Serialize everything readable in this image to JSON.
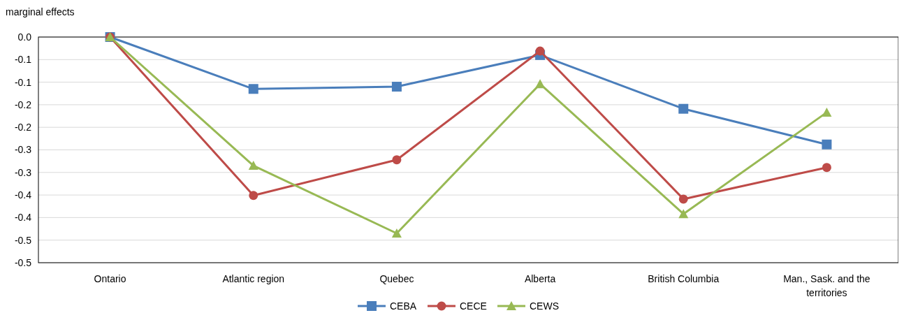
{
  "chart_data": {
    "type": "line",
    "ylabel": "marginal effects",
    "categories": [
      "Ontario",
      "Atlantic region",
      "Quebec",
      "Alberta",
      "British Columbia",
      "Man., Sask. and the territories"
    ],
    "series": [
      {
        "name": "CEBA",
        "color": "#4a7ebb",
        "marker": "square",
        "values": [
          0,
          -0.115,
          -0.11,
          -0.04,
          -0.159,
          -0.238
        ]
      },
      {
        "name": "CECE",
        "color": "#be4b48",
        "marker": "circle",
        "values": [
          0,
          -0.351,
          -0.272,
          -0.031,
          -0.359,
          -0.289
        ]
      },
      {
        "name": "CEWS",
        "color": "#98b954",
        "marker": "triangle",
        "values": [
          0,
          -0.285,
          -0.435,
          -0.104,
          -0.392,
          -0.167
        ]
      }
    ],
    "ylim": [
      -0.5,
      0
    ],
    "yticks": [
      {
        "value": 0,
        "label": "0.0"
      },
      {
        "value": -0.05,
        "label": "-0.1"
      },
      {
        "value": -0.1,
        "label": "-0.1"
      },
      {
        "value": -0.15,
        "label": "-0.2"
      },
      {
        "value": -0.2,
        "label": "-0.2"
      },
      {
        "value": -0.25,
        "label": "-0.3"
      },
      {
        "value": -0.3,
        "label": "-0.3"
      },
      {
        "value": -0.35,
        "label": "-0.4"
      },
      {
        "value": -0.4,
        "label": "-0.4"
      },
      {
        "value": -0.45,
        "label": "-0.5"
      },
      {
        "value": -0.5,
        "label": "-0.5"
      }
    ],
    "grid": "y",
    "legend": "bottom",
    "line_style": "solid"
  }
}
